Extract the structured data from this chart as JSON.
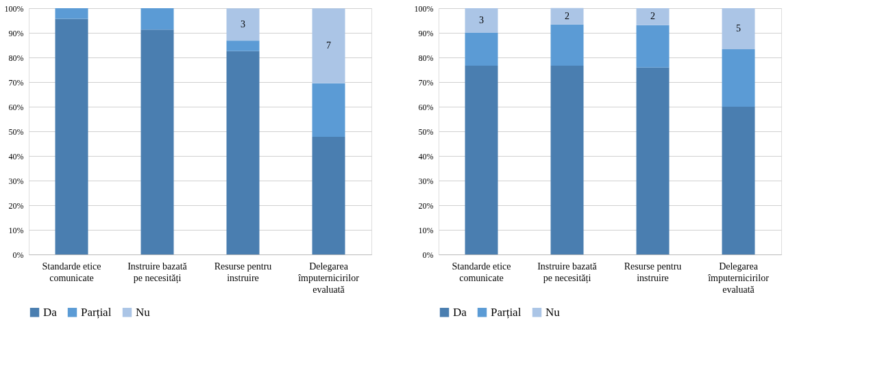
{
  "chart_data": [
    {
      "type": "bar",
      "stacked": true,
      "categories": [
        "Standarde etice comunicate",
        "Instruire bazată pe necesități",
        "Resurse pentru instruire",
        "Delegarea împuternicirilor evaluată"
      ],
      "series": [
        {
          "name": "Da",
          "color": "#4a7eb0",
          "values": [
            95.7,
            91.3,
            82.6,
            47.8
          ]
        },
        {
          "name": "Parțial",
          "color": "#5b9bd5",
          "values": [
            4.3,
            8.7,
            4.3,
            21.7
          ]
        },
        {
          "name": "Nu",
          "color": "#abc5e6",
          "values": [
            0,
            0,
            13.0,
            30.4
          ]
        }
      ],
      "annotations": [
        "3",
        "7"
      ],
      "ylim": [
        0,
        100
      ],
      "yticks": [
        {
          "value": 0,
          "label": "0%"
        },
        {
          "value": 10,
          "label": "10%"
        },
        {
          "value": 20,
          "label": "20%"
        },
        {
          "value": 30,
          "label": "30%"
        },
        {
          "value": 40,
          "label": "40%"
        },
        {
          "value": 50,
          "label": "50%"
        },
        {
          "value": 60,
          "label": "60%"
        },
        {
          "value": 70,
          "label": "70%"
        },
        {
          "value": 80,
          "label": "80%"
        },
        {
          "value": 90,
          "label": "90%"
        },
        {
          "value": 100,
          "label": "100%"
        }
      ],
      "grid": "y",
      "legend": "bottom"
    },
    {
      "type": "bar",
      "stacked": true,
      "categories": [
        "Standarde etice comunicate",
        "Instruire bazată pe necesități",
        "Resurse pentru instruire",
        "Delegarea împuternicirilor evaluată"
      ],
      "series": [
        {
          "name": "Da",
          "color": "#4a7eb0",
          "values": [
            76.7,
            76.7,
            75.9,
            60.0
          ]
        },
        {
          "name": "Parțial",
          "color": "#5b9bd5",
          "values": [
            13.3,
            16.7,
            17.2,
            23.3
          ]
        },
        {
          "name": "Nu",
          "color": "#abc5e6",
          "values": [
            10.0,
            6.7,
            6.9,
            16.7
          ]
        }
      ],
      "annotations": [
        "3",
        "2",
        "2",
        "5"
      ],
      "ylim": [
        0,
        100
      ],
      "yticks": [
        {
          "value": 0,
          "label": "0%"
        },
        {
          "value": 10,
          "label": "10%"
        },
        {
          "value": 20,
          "label": "20%"
        },
        {
          "value": 30,
          "label": "30%"
        },
        {
          "value": 40,
          "label": "40%"
        },
        {
          "value": 50,
          "label": "50%"
        },
        {
          "value": 60,
          "label": "60%"
        },
        {
          "value": 70,
          "label": "70%"
        },
        {
          "value": 80,
          "label": "80%"
        },
        {
          "value": 90,
          "label": "90%"
        },
        {
          "value": 100,
          "label": "100%"
        }
      ],
      "grid": "y",
      "legend": "bottom"
    }
  ]
}
